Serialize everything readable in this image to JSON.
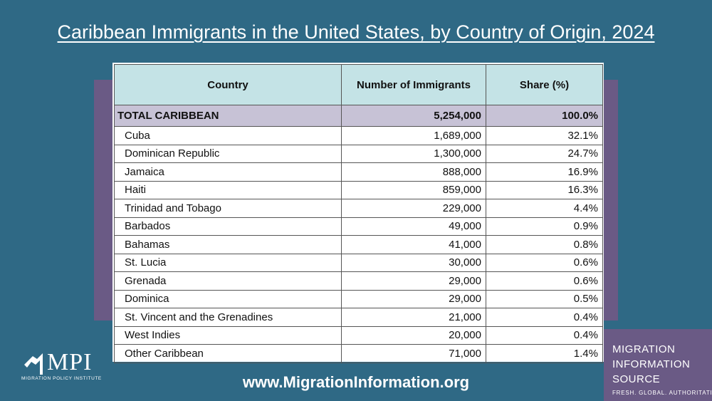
{
  "title": "Caribbean Immigrants in the United States, by Country of Origin, 2024",
  "chart_data": {
    "type": "table",
    "columns": [
      "Country",
      "Number of Immigrants",
      "Share (%)"
    ],
    "total": {
      "country": "TOTAL CARIBBEAN",
      "number": "5,254,000",
      "share": "100.0%"
    },
    "rows": [
      {
        "country": "Cuba",
        "number": "1,689,000",
        "share": "32.1%"
      },
      {
        "country": "Dominican Republic",
        "number": "1,300,000",
        "share": "24.7%"
      },
      {
        "country": "Jamaica",
        "number": "888,000",
        "share": "16.9%"
      },
      {
        "country": "Haiti",
        "number": "859,000",
        "share": "16.3%"
      },
      {
        "country": "Trinidad and Tobago",
        "number": "229,000",
        "share": "4.4%"
      },
      {
        "country": "Barbados",
        "number": "49,000",
        "share": "0.9%"
      },
      {
        "country": "Bahamas",
        "number": "41,000",
        "share": "0.8%"
      },
      {
        "country": "St. Lucia",
        "number": "30,000",
        "share": "0.6%"
      },
      {
        "country": "Grenada",
        "number": "29,000",
        "share": "0.6%"
      },
      {
        "country": "Dominica",
        "number": "29,000",
        "share": "0.5%"
      },
      {
        "country": "St. Vincent and the Grenadines",
        "number": "21,000",
        "share": "0.4%"
      },
      {
        "country": "West Indies",
        "number": "20,000",
        "share": "0.4%"
      },
      {
        "country": "Other Caribbean",
        "number": "71,000",
        "share": "1.4%"
      }
    ]
  },
  "logo": {
    "text": "MPI",
    "subtitle": "MIGRATION POLICY INSTITUTE",
    "icon": "mpi-figure-icon"
  },
  "website": "www.MigrationInformation.org",
  "source_box": {
    "lines": [
      "MIGRATION",
      "INFORMATION",
      "SOURCE"
    ],
    "tagline": "FRESH. GLOBAL. AUTHORITATIVE."
  },
  "colors": {
    "background": "#2f6985",
    "header": "#c4e3e6",
    "total_row": "#c7c2d6",
    "accent_purple": "#6a5a85"
  }
}
